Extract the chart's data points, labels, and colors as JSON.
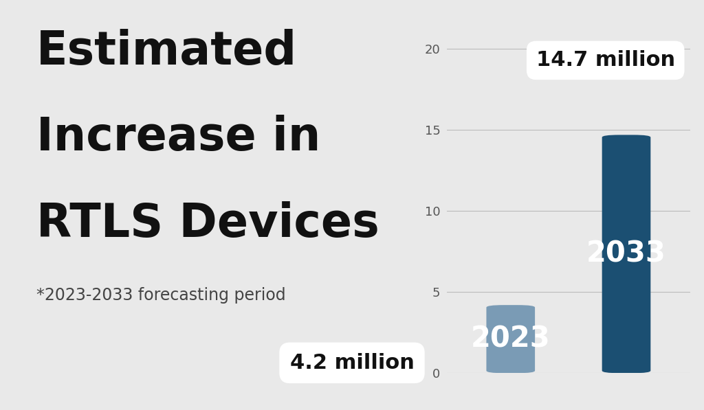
{
  "title_line1": "Estimated",
  "title_line2": "Increase in",
  "title_line3": "RTLS Devices",
  "subtitle": "*2023-2033 forecasting period",
  "bar_labels": [
    "2023",
    "2033"
  ],
  "bar_values": [
    4.2,
    14.7
  ],
  "bar_colors": [
    "#7A9BB5",
    "#1B4F72"
  ],
  "annotation_2023": "4.2 million",
  "annotation_2033": "14.7 million",
  "background_color": "#E9E9E9",
  "ylim": [
    0,
    21
  ],
  "yticks": [
    0,
    5,
    10,
    15,
    20
  ],
  "title_fontsize": 48,
  "subtitle_fontsize": 17,
  "bar_label_fontsize": 30,
  "annotation_fontsize": 22
}
